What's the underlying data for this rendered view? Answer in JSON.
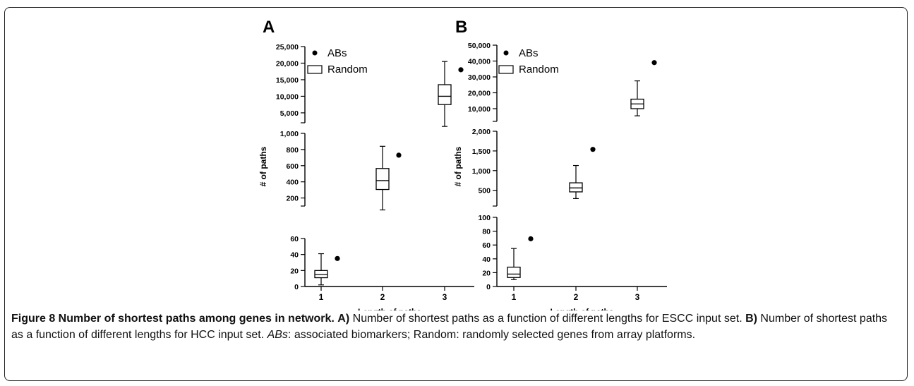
{
  "caption": {
    "title": "Figure 8 Number of shortest paths among genes in network.",
    "a_label": "A)",
    "a_text": " Number of shortest paths as a function of different lengths for ESCC input set. ",
    "b_label": "B)",
    "b_text": " Number of shortest paths as a function of different lengths for HCC input set. ",
    "abs_abbr": "ABs",
    "abs_text": ": associated biomarkers; Random: randomly selected genes from array platforms."
  },
  "chart_data": [
    {
      "type": "box",
      "panel_label": "A",
      "xlabel": "Length of paths",
      "ylabel": "# of paths",
      "categories": [
        "1",
        "2",
        "3"
      ],
      "legend": {
        "placement": "top-left",
        "entries": [
          "ABs",
          "Random"
        ]
      },
      "segments": [
        {
          "range": [
            0,
            60
          ],
          "ticks": [
            0,
            20,
            40,
            60
          ],
          "tick_labels": [
            "0",
            "20",
            "40",
            "60"
          ]
        },
        {
          "range": [
            100,
            1000
          ],
          "ticks": [
            200,
            400,
            600,
            800,
            1000
          ],
          "tick_labels": [
            "200",
            "400",
            "600",
            "800",
            "1,000"
          ]
        },
        {
          "range": [
            2000,
            25000
          ],
          "ticks": [
            5000,
            10000,
            15000,
            20000,
            25000
          ],
          "tick_labels": [
            "5,000",
            "10,000",
            "15,000",
            "20,000",
            "25,000"
          ]
        }
      ],
      "series": [
        {
          "name": "Random",
          "boxes": [
            {
              "category": "1",
              "segment": 0,
              "min": 2,
              "q1": 11,
              "median": 15,
              "q3": 20,
              "max": 41
            },
            {
              "category": "2",
              "segment": 1,
              "min": 52,
              "q1": 305,
              "median": 415,
              "q3": 565,
              "max": 840
            },
            {
              "category": "3",
              "segment": 2,
              "min": 900,
              "q1": 7500,
              "median": 10000,
              "q3": 13500,
              "max": 20500
            }
          ]
        },
        {
          "name": "ABs",
          "points": [
            {
              "category": "1",
              "segment": 0,
              "value": 35
            },
            {
              "category": "2",
              "segment": 1,
              "value": 730
            },
            {
              "category": "3",
              "segment": 2,
              "value": 18000
            }
          ]
        }
      ]
    },
    {
      "type": "box",
      "panel_label": "B",
      "xlabel": "Length of paths",
      "ylabel": "# of paths",
      "categories": [
        "1",
        "2",
        "3"
      ],
      "legend": {
        "placement": "top-left",
        "entries": [
          "ABs",
          "Random"
        ]
      },
      "segments": [
        {
          "range": [
            0,
            100
          ],
          "ticks": [
            0,
            20,
            40,
            60,
            80,
            100
          ],
          "tick_labels": [
            "0",
            "20",
            "40",
            "60",
            "80",
            "100"
          ]
        },
        {
          "range": [
            100,
            2000
          ],
          "ticks": [
            500,
            1000,
            1500,
            2000
          ],
          "tick_labels": [
            "500",
            "1,000",
            "1,500",
            "2,000"
          ]
        },
        {
          "range": [
            2000,
            50000
          ],
          "ticks": [
            10000,
            20000,
            30000,
            40000,
            50000
          ],
          "tick_labels": [
            "10,000",
            "20,000",
            "30,000",
            "40,000",
            "50,000"
          ]
        }
      ],
      "series": [
        {
          "name": "Random",
          "boxes": [
            {
              "category": "1",
              "segment": 0,
              "min": 10,
              "q1": 13,
              "median": 18,
              "q3": 28,
              "max": 55
            },
            {
              "category": "2",
              "segment": 1,
              "min": 290,
              "q1": 460,
              "median": 560,
              "q3": 690,
              "max": 1130
            },
            {
              "category": "3",
              "segment": 2,
              "min": 5500,
              "q1": 10000,
              "median": 13000,
              "q3": 16000,
              "max": 27500
            }
          ]
        },
        {
          "name": "ABs",
          "points": [
            {
              "category": "1",
              "segment": 0,
              "value": 69
            },
            {
              "category": "2",
              "segment": 1,
              "value": 1540
            },
            {
              "category": "3",
              "segment": 2,
              "value": 39000
            }
          ]
        }
      ]
    }
  ]
}
